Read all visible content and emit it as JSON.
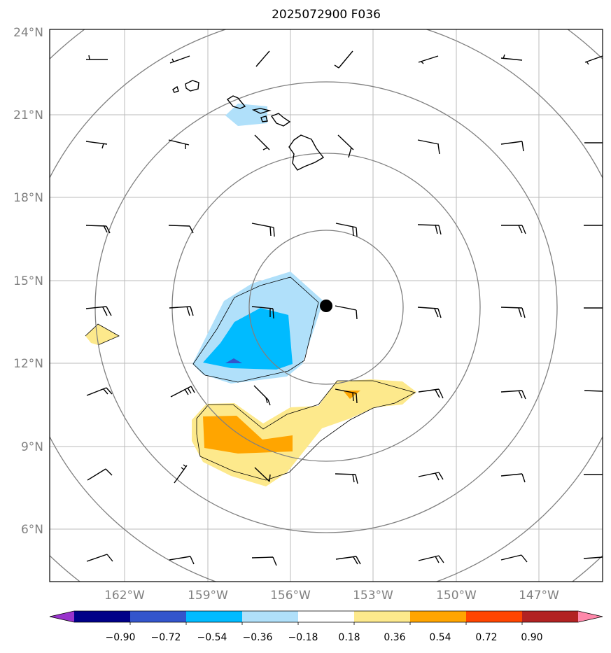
{
  "title": "2025072900 F036",
  "lat_labels": [
    "24°N",
    "21°N",
    "18°N",
    "15°N",
    "12°N",
    "9°N",
    "6°N"
  ],
  "lon_labels": [
    "162°W",
    "159°W",
    "156°W",
    "153°W",
    "150°W",
    "147°W"
  ],
  "colorbar": {
    "colors": [
      "#9933cc",
      "#000088",
      "#3355cc",
      "#00bbff",
      "#b0e0fa",
      "#ffffff",
      "#fde98c",
      "#ffa500",
      "#ff4500",
      "#b22222",
      "#ff88aa"
    ],
    "tick_labels": [
      "−0.90",
      "−0.72",
      "−0.54",
      "−0.36",
      "−0.18",
      "0.18",
      "0.36",
      "0.54",
      "0.72",
      "0.90"
    ]
  },
  "colors": {
    "grid": "#bbbbbb",
    "range_rings": "#808080",
    "coast": "#000000",
    "neg_light": "#b0e0fa",
    "neg_mid": "#00bbff",
    "neg_strong": "#3355cc",
    "pos_light": "#fde98c",
    "pos_mid": "#ffa500"
  },
  "marker": {
    "lat": 14.1,
    "lon": -154.7
  },
  "chart_data": {
    "type": "map",
    "lon_range": [
      -165,
      -145
    ],
    "lat_range": [
      4.2,
      24.2
    ],
    "range_ring_count": 5
  }
}
